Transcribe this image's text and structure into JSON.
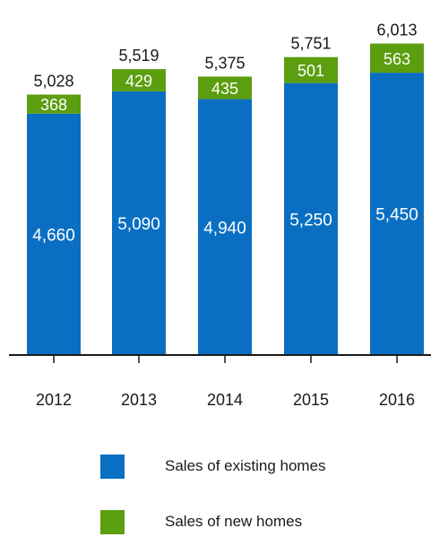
{
  "chart_data": {
    "type": "bar",
    "stacked": true,
    "categories": [
      "2012",
      "2013",
      "2014",
      "2015",
      "2016"
    ],
    "series": [
      {
        "name": "Sales of existing homes",
        "color": "#0a6fc2",
        "values": [
          4660,
          5090,
          4940,
          5250,
          5450
        ],
        "labels": [
          "4,660",
          "5,090",
          "4,940",
          "5,250",
          "5,450"
        ]
      },
      {
        "name": "Sales of new homes",
        "color": "#5b9e0f",
        "values": [
          368,
          429,
          435,
          501,
          563
        ],
        "labels": [
          "368",
          "429",
          "435",
          "501",
          "563"
        ]
      }
    ],
    "totals": [
      5028,
      5519,
      5375,
      5751,
      6013
    ],
    "total_labels": [
      "5,028",
      "5,519",
      "5,375",
      "5,751",
      "6,013"
    ],
    "ylim": [
      0,
      6100
    ],
    "grid": false,
    "legend_position": "bottom"
  }
}
